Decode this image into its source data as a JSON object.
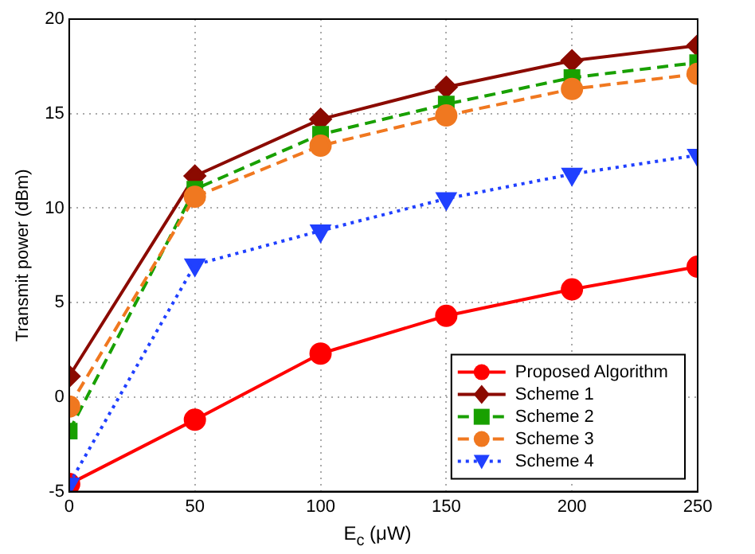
{
  "chart_data": {
    "type": "line",
    "xlabel": "E$_{c}$ (μW)",
    "ylabel": "Transmit power (dBm)",
    "x": [
      0,
      50,
      100,
      150,
      200,
      250
    ],
    "xlim": [
      0,
      250
    ],
    "xticks": [
      0,
      50,
      100,
      150,
      200,
      250
    ],
    "ylim": [
      -5,
      20
    ],
    "yticks": [
      -5,
      0,
      5,
      10,
      15,
      20
    ],
    "grid": true,
    "legend": "bottom right",
    "series": [
      {
        "name": "Proposed Algorithm",
        "color": "#ff0000",
        "marker": "circle",
        "line_style": "solid",
        "values": [
          -4.6,
          -1.2,
          2.3,
          4.3,
          5.7,
          6.9
        ]
      },
      {
        "name": "Scheme 1",
        "color": "#8b0a00",
        "marker": "diamond",
        "line_style": "solid",
        "values": [
          1.1,
          11.7,
          14.7,
          16.4,
          17.8,
          18.6
        ]
      },
      {
        "name": "Scheme 2",
        "color": "#18a000",
        "marker": "square",
        "line_style": "dashed",
        "values": [
          -1.8,
          11.0,
          13.9,
          15.5,
          16.9,
          17.7
        ]
      },
      {
        "name": "Scheme 3",
        "color": "#f07820",
        "marker": "circle",
        "line_style": "dashed",
        "values": [
          -0.5,
          10.6,
          13.3,
          14.9,
          16.3,
          17.1
        ]
      },
      {
        "name": "Scheme 4",
        "color": "#2040ff",
        "marker": "triangle",
        "line_style": "dotted",
        "values": [
          -4.6,
          7.0,
          8.8,
          10.5,
          11.8,
          12.8
        ]
      }
    ]
  }
}
